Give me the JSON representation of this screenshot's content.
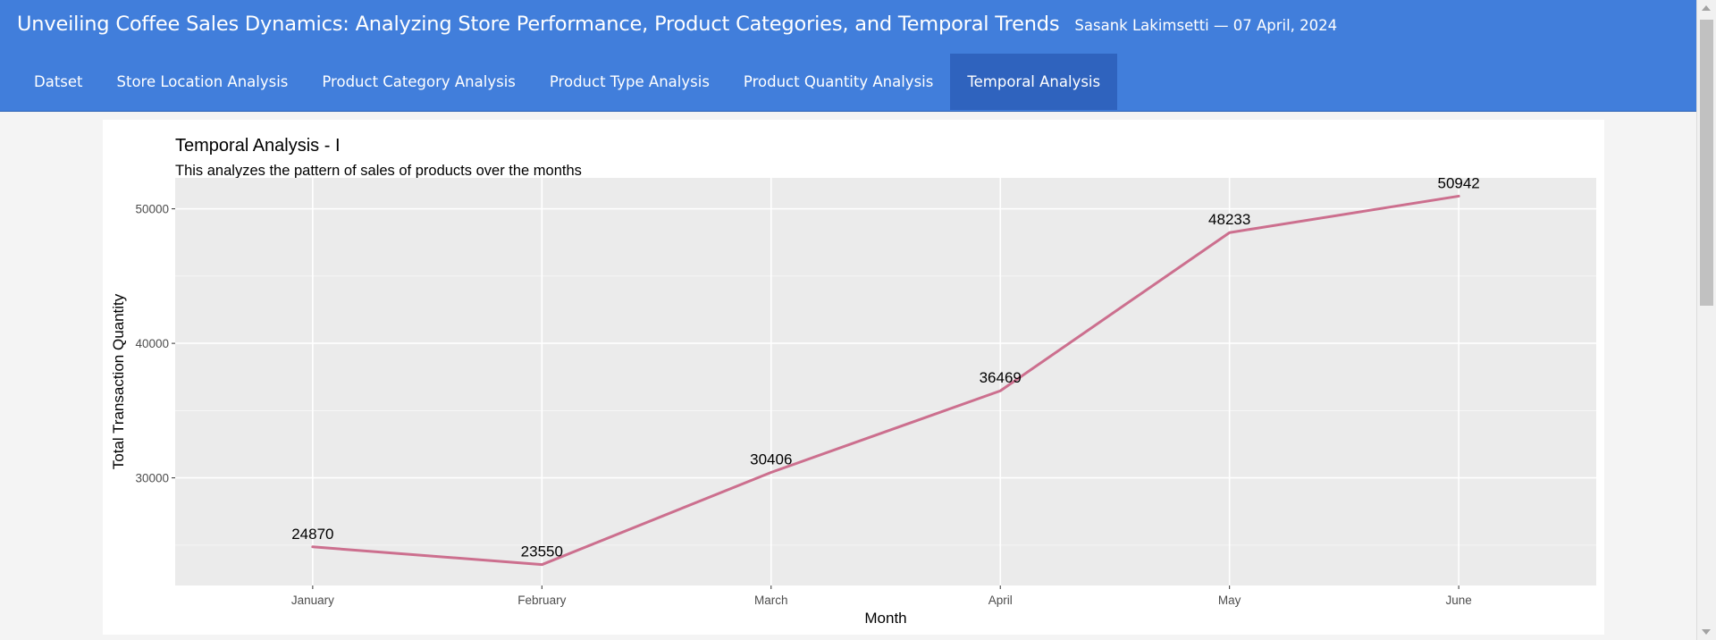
{
  "header": {
    "title": "Unveiling Coffee Sales Dynamics: Analyzing Store Performance, Product Categories, and Temporal Trends",
    "author": "Sasank Lakimsetti — 07 April, 2024"
  },
  "tabs": [
    {
      "label": "Datset",
      "active": false
    },
    {
      "label": "Store Location Analysis",
      "active": false
    },
    {
      "label": "Product Category Analysis",
      "active": false
    },
    {
      "label": "Product Type Analysis",
      "active": false
    },
    {
      "label": "Product Quantity Analysis",
      "active": false
    },
    {
      "label": "Temporal Analysis",
      "active": true
    }
  ],
  "colors": {
    "navbar": "#417edb",
    "active_tab": "#2f63be",
    "panel_bg": "#ebebeb",
    "line": "#cc6f8e"
  },
  "chart_data": {
    "type": "line",
    "title": "Temporal Analysis - I",
    "subtitle": "This analyzes the pattern of sales of products over the months",
    "xlabel": "Month",
    "ylabel": "Total Transaction Quantity",
    "categories": [
      "January",
      "February",
      "March",
      "April",
      "May",
      "June"
    ],
    "values": [
      24870,
      23550,
      30406,
      36469,
      48233,
      50942
    ],
    "data_labels": [
      "24870",
      "23550",
      "30406",
      "36469",
      "48233",
      "50942"
    ],
    "yticks": [
      30000,
      40000,
      50000
    ],
    "ytick_labels": [
      "30000",
      "40000",
      "50000"
    ],
    "ylim": [
      22000,
      52300
    ],
    "grid": true,
    "legend": "none"
  }
}
